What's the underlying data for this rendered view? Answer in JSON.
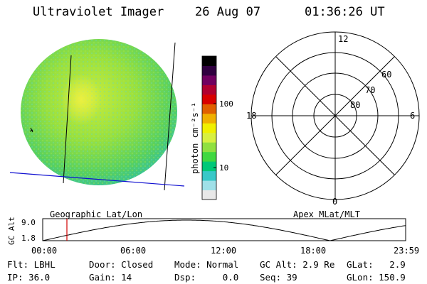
{
  "header": {
    "instrument": "Ultraviolet Imager",
    "date": "26 Aug 07",
    "time": "01:36:26 UT"
  },
  "colorbar": {
    "label": "photon cm⁻²s⁻¹",
    "ticks": [
      "100",
      "10"
    ],
    "scale": "log",
    "colors": [
      "#e8e8e8",
      "#9fe0e8",
      "#38c8c8",
      "#00c878",
      "#40d840",
      "#90e040",
      "#d8f040",
      "#f0f000",
      "#f0b000",
      "#e06000",
      "#d80000",
      "#b00030",
      "#700060",
      "#300040",
      "#000000"
    ]
  },
  "polar_plot": {
    "labels": {
      "top": "12",
      "left": "18",
      "right": "6",
      "bottom": "0"
    },
    "latitudes": [
      "60",
      "70",
      "80"
    ]
  },
  "timeline": {
    "left_label": "Geographic Lat/Lon",
    "right_label": "Apex MLat/MLT",
    "ylabel": "GC Alt",
    "y_ticks": [
      "9.0",
      "1.8"
    ],
    "x_ticks": [
      "00:00",
      "06:00",
      "12:00",
      "18:00",
      "23:59"
    ],
    "current_hour": 1.6,
    "marker_color": "#d00000"
  },
  "status": {
    "flt": "Flt: LBHL",
    "ip": "IP: 36.0",
    "door": "Door: Closed",
    "gain": "Gain: 14",
    "mode": "Mode: Normal",
    "dsp": "Dsp:     0.0",
    "gc_alt": "GC Alt: 2.9 Re",
    "seq": "Seq: 39",
    "glat": "GLat:   2.9",
    "glon": "GLon: 150.9"
  }
}
